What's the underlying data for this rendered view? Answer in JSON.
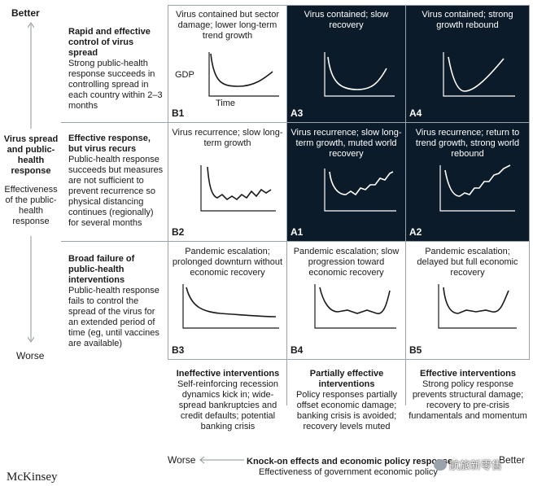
{
  "y_axis": {
    "top": "Better",
    "bottom": "Worse",
    "title": "Virus spread and public-health response",
    "subtitle": "Effectiveness of the public-health response"
  },
  "rows": [
    {
      "title": "Rapid and effective control of virus spread",
      "text": "Strong public-health response succeeds in controlling spread in each country within 2–3 months"
    },
    {
      "title": "Effective response, but virus recurs",
      "text": "Public-health response succeeds but measures are not sufficient to prevent recurrence so physical distancing continues (regionally) for several months"
    },
    {
      "title": "Broad failure of public-health interventions",
      "text": "Public-health response fails to control the spread of the virus for an extended period of time (eg, until vaccines are available)"
    }
  ],
  "cells": [
    {
      "id": "B1",
      "caption": "Virus contained but sector damage; lower long-term trend growth",
      "dark": false
    },
    {
      "id": "A3",
      "caption": "Virus contained; slow recovery",
      "dark": true
    },
    {
      "id": "A4",
      "caption": "Virus contained; strong growth rebound",
      "dark": true
    },
    {
      "id": "B2",
      "caption": "Virus recurrence; slow long-term growth",
      "dark": false
    },
    {
      "id": "A1",
      "caption": "Virus recurrence; slow long-term growth, muted world recovery",
      "dark": true
    },
    {
      "id": "A2",
      "caption": "Virus recurrence; return to trend growth, strong world rebound",
      "dark": true
    },
    {
      "id": "B3",
      "caption": "Pandemic escalation; prolonged downturn without economic recovery",
      "dark": false
    },
    {
      "id": "B4",
      "caption": "Pandemic escalation; slow progression toward economic recovery",
      "dark": false
    },
    {
      "id": "B5",
      "caption": "Pandemic escalation; delayed but full economic recovery",
      "dark": false
    }
  ],
  "b1_axis": {
    "y": "GDP",
    "x": "Time"
  },
  "columns": [
    {
      "title": "Ineffective interventions",
      "text": "Self-reinforcing recession dynamics kick in; wide-spread bankruptcies and credit defaults; potential banking crisis"
    },
    {
      "title": "Partially effective interventions",
      "text": "Policy responses partially offset economic damage; banking crisis is avoided; recovery levels muted"
    },
    {
      "title": "Effective interventions",
      "text": "Strong policy response prevents structural damage; recovery to pre-crisis fundamentals and momentum"
    }
  ],
  "x_axis": {
    "left": "Worse",
    "right": "Better",
    "title": "Knock-on effects and economic policy response",
    "subtitle": "Effectiveness of government economic policy"
  },
  "brand": "McKinsey",
  "watermark": "航旅新零售",
  "colors": {
    "dark_cell": "#0c1b2a",
    "grid": "#9aa3ab"
  }
}
